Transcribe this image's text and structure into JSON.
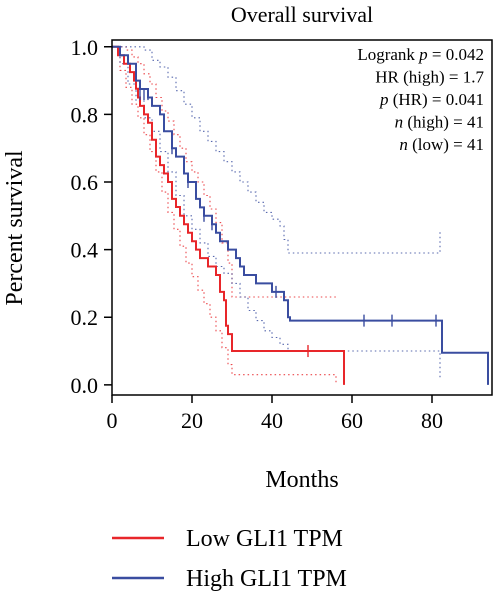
{
  "chart_data": {
    "type": "line",
    "title": "Overall survival",
    "xlabel": "Months",
    "ylabel": "Percent survival",
    "xlim": [
      0,
      95
    ],
    "ylim": [
      -0.03,
      1.02
    ],
    "xticks": [
      0,
      20,
      40,
      60,
      80
    ],
    "yticks": [
      0.0,
      0.2,
      0.4,
      0.6,
      0.8,
      1.0
    ],
    "ytick_labels": [
      "0.0",
      "0.2",
      "0.4",
      "0.6",
      "0.8",
      "1.0"
    ],
    "annotations": [
      {
        "id": "logrank",
        "prefix": "Logrank ",
        "italic": "p",
        "suffix": " = 0.042"
      },
      {
        "id": "hr",
        "prefix": "HR (high) = 1.7",
        "italic": "",
        "suffix": ""
      },
      {
        "id": "phr",
        "prefix": "",
        "italic": "p",
        "suffix": " (HR) = 0.041"
      },
      {
        "id": "nhigh",
        "prefix": "",
        "italic": "n",
        "suffix": " (high) = 41"
      },
      {
        "id": "nlow",
        "prefix": "",
        "italic": "n",
        "suffix": " (low) = 41"
      }
    ],
    "legend_position": "bottom",
    "series": [
      {
        "name": "Low GLI1 TPM",
        "color": "#e8262a",
        "steps": [
          [
            0,
            1.0
          ],
          [
            1.5,
            0.975
          ],
          [
            3,
            0.95
          ],
          [
            4.5,
            0.925
          ],
          [
            5.5,
            0.9
          ],
          [
            6,
            0.876
          ],
          [
            6.5,
            0.85
          ],
          [
            7,
            0.825
          ],
          [
            8,
            0.8
          ],
          [
            9,
            0.775
          ],
          [
            10,
            0.725
          ],
          [
            11,
            0.675
          ],
          [
            12,
            0.65
          ],
          [
            13,
            0.625
          ],
          [
            14,
            0.6
          ],
          [
            15,
            0.55
          ],
          [
            16,
            0.526
          ],
          [
            17,
            0.5
          ],
          [
            18,
            0.475
          ],
          [
            19,
            0.45
          ],
          [
            20,
            0.425
          ],
          [
            21,
            0.4
          ],
          [
            22,
            0.375
          ],
          [
            24,
            0.35
          ],
          [
            26,
            0.325
          ],
          [
            27,
            0.275
          ],
          [
            28,
            0.25
          ],
          [
            28.5,
            0.175
          ],
          [
            29,
            0.15
          ],
          [
            30,
            0.1
          ],
          [
            56,
            0.1
          ],
          [
            58,
            0.0
          ]
        ],
        "censors": [
          [
            49,
            0.1
          ]
        ],
        "ci_upper": [
          [
            0,
            1.0
          ],
          [
            2,
            1.0
          ],
          [
            3.5,
            0.99
          ],
          [
            5,
            0.97
          ],
          [
            6.5,
            0.95
          ],
          [
            8,
            0.92
          ],
          [
            9.5,
            0.89
          ],
          [
            11,
            0.85
          ],
          [
            12.5,
            0.81
          ],
          [
            14,
            0.78
          ],
          [
            15.5,
            0.74
          ],
          [
            17,
            0.7
          ],
          [
            18.5,
            0.66
          ],
          [
            20,
            0.63
          ],
          [
            21.5,
            0.6
          ],
          [
            23,
            0.56
          ],
          [
            24.5,
            0.52
          ],
          [
            26,
            0.48
          ],
          [
            27.5,
            0.42
          ],
          [
            29,
            0.36
          ],
          [
            30,
            0.26
          ],
          [
            56,
            0.26
          ]
        ],
        "ci_lower": [
          [
            0,
            1.0
          ],
          [
            2,
            0.93
          ],
          [
            3.5,
            0.88
          ],
          [
            5,
            0.83
          ],
          [
            6.5,
            0.79
          ],
          [
            8,
            0.74
          ],
          [
            9.5,
            0.69
          ],
          [
            11,
            0.63
          ],
          [
            12.5,
            0.57
          ],
          [
            14,
            0.51
          ],
          [
            15.5,
            0.46
          ],
          [
            17,
            0.41
          ],
          [
            18.5,
            0.36
          ],
          [
            20,
            0.32
          ],
          [
            21.5,
            0.28
          ],
          [
            23,
            0.24
          ],
          [
            24.5,
            0.2
          ],
          [
            26,
            0.16
          ],
          [
            27.5,
            0.11
          ],
          [
            29,
            0.06
          ],
          [
            30,
            0.03
          ],
          [
            56,
            0.03
          ],
          [
            56,
            0.0
          ]
        ]
      },
      {
        "name": "High GLI1 TPM",
        "color": "#3a4da0",
        "steps": [
          [
            0,
            1.0
          ],
          [
            2,
            0.975
          ],
          [
            4,
            0.95
          ],
          [
            6,
            0.9
          ],
          [
            7,
            0.875
          ],
          [
            9,
            0.85
          ],
          [
            10,
            0.825
          ],
          [
            12,
            0.8
          ],
          [
            13,
            0.75
          ],
          [
            15,
            0.7
          ],
          [
            16,
            0.675
          ],
          [
            18,
            0.625
          ],
          [
            19,
            0.6
          ],
          [
            21,
            0.55
          ],
          [
            22,
            0.525
          ],
          [
            23,
            0.5
          ],
          [
            25,
            0.475
          ],
          [
            26,
            0.45
          ],
          [
            27,
            0.425
          ],
          [
            29,
            0.4
          ],
          [
            31,
            0.375
          ],
          [
            32,
            0.35
          ],
          [
            33,
            0.325
          ],
          [
            36,
            0.3
          ],
          [
            40,
            0.275
          ],
          [
            43,
            0.25
          ],
          [
            44,
            0.2
          ],
          [
            44.5,
            0.19
          ],
          [
            82,
            0.19
          ],
          [
            82.5,
            0.095
          ],
          [
            94,
            0.095
          ],
          [
            94,
            0.0
          ]
        ],
        "censors": [
          [
            7,
            0.86
          ],
          [
            8,
            0.86
          ],
          [
            9,
            0.86
          ],
          [
            15,
            0.7
          ],
          [
            19,
            0.6
          ],
          [
            23,
            0.5
          ],
          [
            25,
            0.475
          ],
          [
            41,
            0.275
          ],
          [
            63,
            0.19
          ],
          [
            70,
            0.19
          ],
          [
            81,
            0.19
          ]
        ],
        "ci_upper": [
          [
            0,
            1.0
          ],
          [
            2,
            1.0
          ],
          [
            4,
            1.0
          ],
          [
            6,
            1.0
          ],
          [
            8,
            0.99
          ],
          [
            10,
            0.96
          ],
          [
            12,
            0.94
          ],
          [
            14,
            0.91
          ],
          [
            16,
            0.87
          ],
          [
            18,
            0.83
          ],
          [
            20,
            0.79
          ],
          [
            22,
            0.75
          ],
          [
            24,
            0.72
          ],
          [
            26,
            0.69
          ],
          [
            28,
            0.66
          ],
          [
            30,
            0.63
          ],
          [
            32,
            0.6
          ],
          [
            34,
            0.57
          ],
          [
            36,
            0.54
          ],
          [
            38,
            0.51
          ],
          [
            40,
            0.49
          ],
          [
            42,
            0.47
          ],
          [
            43,
            0.43
          ],
          [
            44,
            0.39
          ],
          [
            82,
            0.39
          ],
          [
            82,
            0.46
          ]
        ],
        "ci_lower": [
          [
            0,
            1.0
          ],
          [
            2,
            0.95
          ],
          [
            4,
            0.89
          ],
          [
            6,
            0.84
          ],
          [
            8,
            0.79
          ],
          [
            10,
            0.75
          ],
          [
            12,
            0.69
          ],
          [
            14,
            0.63
          ],
          [
            16,
            0.56
          ],
          [
            18,
            0.5
          ],
          [
            20,
            0.46
          ],
          [
            22,
            0.42
          ],
          [
            24,
            0.38
          ],
          [
            26,
            0.35
          ],
          [
            28,
            0.33
          ],
          [
            30,
            0.3
          ],
          [
            32,
            0.26
          ],
          [
            34,
            0.22
          ],
          [
            36,
            0.19
          ],
          [
            38,
            0.16
          ],
          [
            40,
            0.14
          ],
          [
            42,
            0.12
          ],
          [
            44,
            0.1
          ],
          [
            82,
            0.1
          ],
          [
            82,
            0.02
          ]
        ]
      }
    ]
  }
}
